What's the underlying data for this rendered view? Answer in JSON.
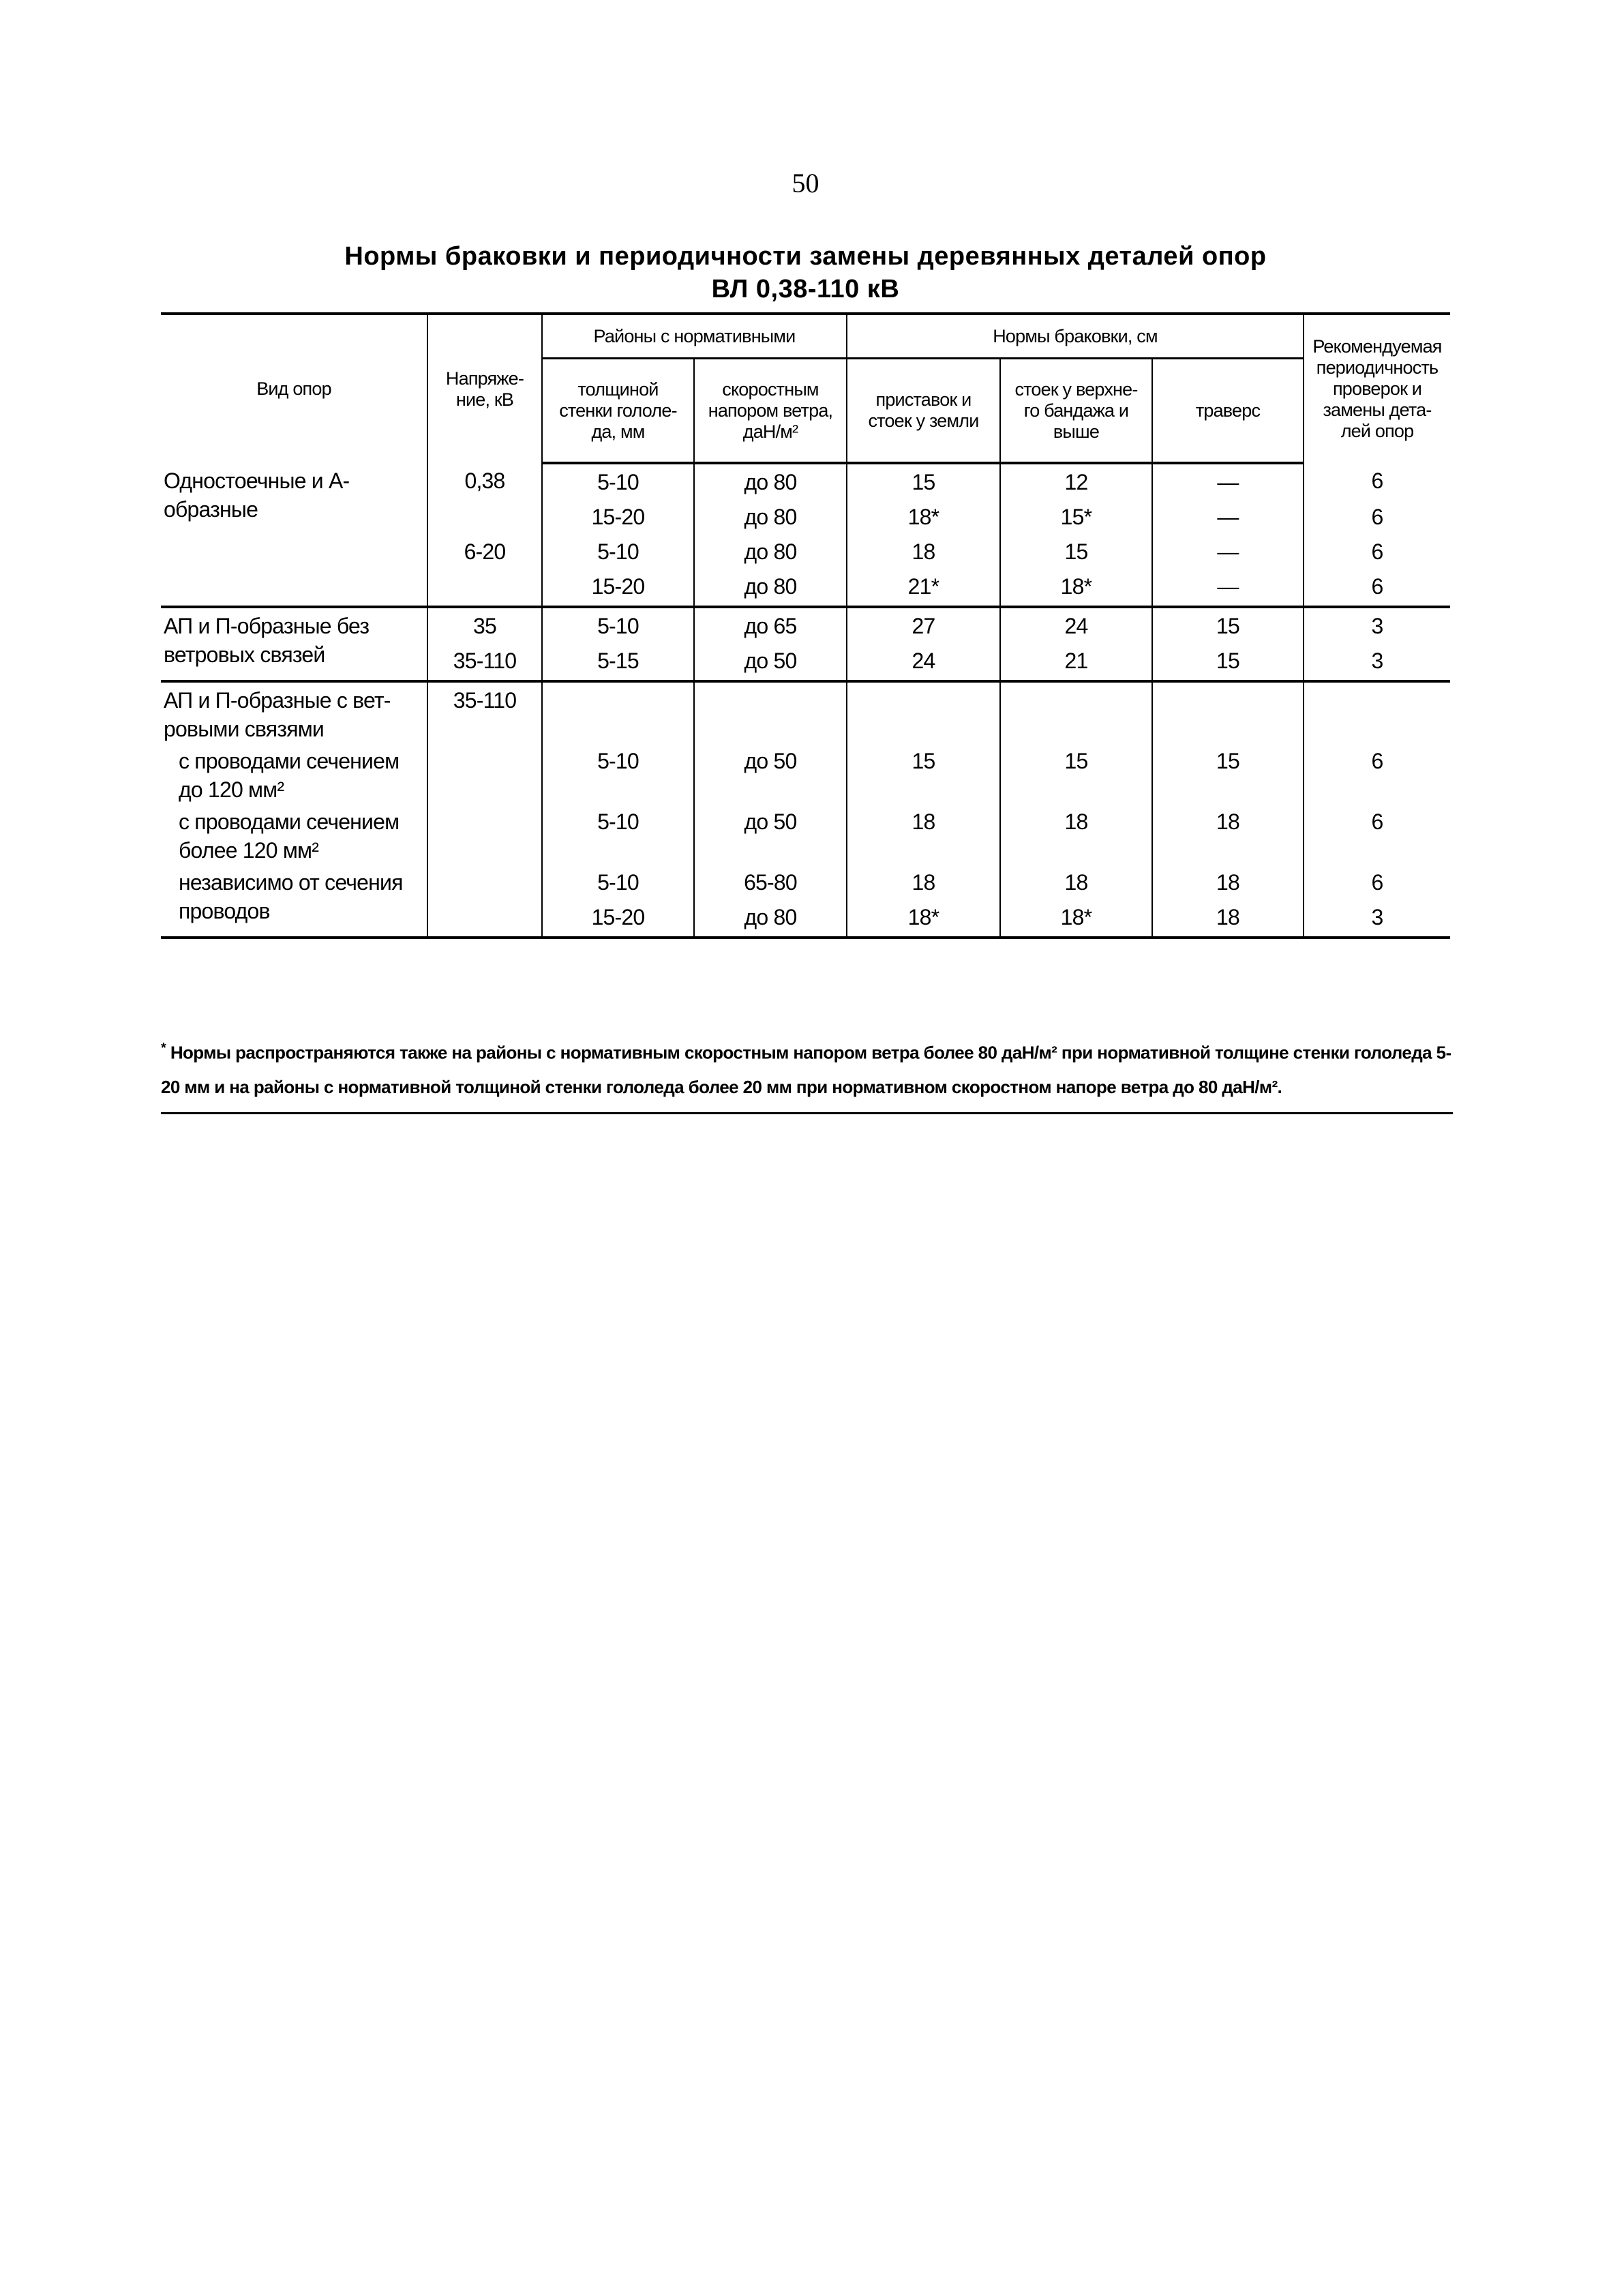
{
  "page_number": "50",
  "title": {
    "line1": "Нормы браковки и периодичности замены деревянных деталей опор",
    "line2": "ВЛ 0,38-110 кВ"
  },
  "table": {
    "headers": {
      "type": "Вид опор",
      "voltage": "Напряже-\nние, кВ",
      "regions": "Районы с нормативными",
      "ice": "толщиной\nстенки гололе-\nда, мм",
      "wind": "скоростным\nнапором ветра,\nдаН/м²",
      "norms": "Нормы браковки, см",
      "base": "приставок и\nстоек у земли",
      "top": "стоек у верхне-\nго бандажа и\nвыше",
      "traverse": "траверс",
      "period": "Рекомендуемая\nпериодичность\nпроверок и\nзамены дета-\nлей опор"
    },
    "rows": [
      {
        "label": "Одностоечные и А-\nобразные",
        "label_span": 4,
        "voltage": "0,38",
        "ice": "5-10",
        "wind": "до 80",
        "base": "15",
        "top": "12",
        "traverse": "—",
        "period": "6"
      },
      {
        "voltage": "",
        "ice": "15-20",
        "wind": "до 80",
        "base": "18*",
        "top": "15*",
        "traverse": "—",
        "period": "6"
      },
      {
        "voltage": "6-20",
        "ice": "5-10",
        "wind": "до 80",
        "base": "18",
        "top": "15",
        "traverse": "—",
        "period": "6"
      },
      {
        "voltage": "",
        "ice": "15-20",
        "wind": "до 80",
        "base": "21*",
        "top": "18*",
        "traverse": "—",
        "period": "6",
        "group_end": true
      },
      {
        "label": "АП и П-образные без\nветровых связей",
        "label_span": 2,
        "voltage": "35",
        "ice": "5-10",
        "wind": "до 65",
        "base": "27",
        "top": "24",
        "traverse": "15",
        "period": "3"
      },
      {
        "voltage": "35-110",
        "ice": "5-15",
        "wind": "до 50",
        "base": "24",
        "top": "21",
        "traverse": "15",
        "period": "3",
        "group_end": true
      },
      {
        "label": "АП и П-образные с вет-\nровыми связями",
        "label_span": 1,
        "voltage": "35-110",
        "ice": "",
        "wind": "",
        "base": "",
        "top": "",
        "traverse": "",
        "period": ""
      },
      {
        "label": "с проводами сечением\nдо 120 мм²",
        "label_span": 1,
        "indent": true,
        "voltage": "",
        "ice": "5-10",
        "wind": "до 50",
        "base": "15",
        "top": "15",
        "traverse": "15",
        "period": "6"
      },
      {
        "label": "с проводами сечением\nболее 120 мм²",
        "label_span": 1,
        "indent": true,
        "voltage": "",
        "ice": "5-10",
        "wind": "до 50",
        "base": "18",
        "top": "18",
        "traverse": "18",
        "period": "6"
      },
      {
        "label": "независимо от сечения\nпроводов",
        "label_span": 2,
        "indent": true,
        "voltage": "",
        "ice": "5-10",
        "wind": "65-80",
        "base": "18",
        "top": "18",
        "traverse": "18",
        "period": "6"
      },
      {
        "voltage": "",
        "ice": "15-20",
        "wind": "до 80",
        "base": "18*",
        "top": "18*",
        "traverse": "18",
        "period": "3",
        "group_end": true
      }
    ]
  },
  "footnote": {
    "marker": "*",
    "text": "Нормы распространяются также на районы с нормативным скоростным напором ветра более 80 даН/м² при нормативной толщине стенки гололеда 5-20 мм и на районы с нормативной толщиной стенки гололеда более 20 мм при нормативном скоростном напоре ветра до 80 даН/м²."
  }
}
